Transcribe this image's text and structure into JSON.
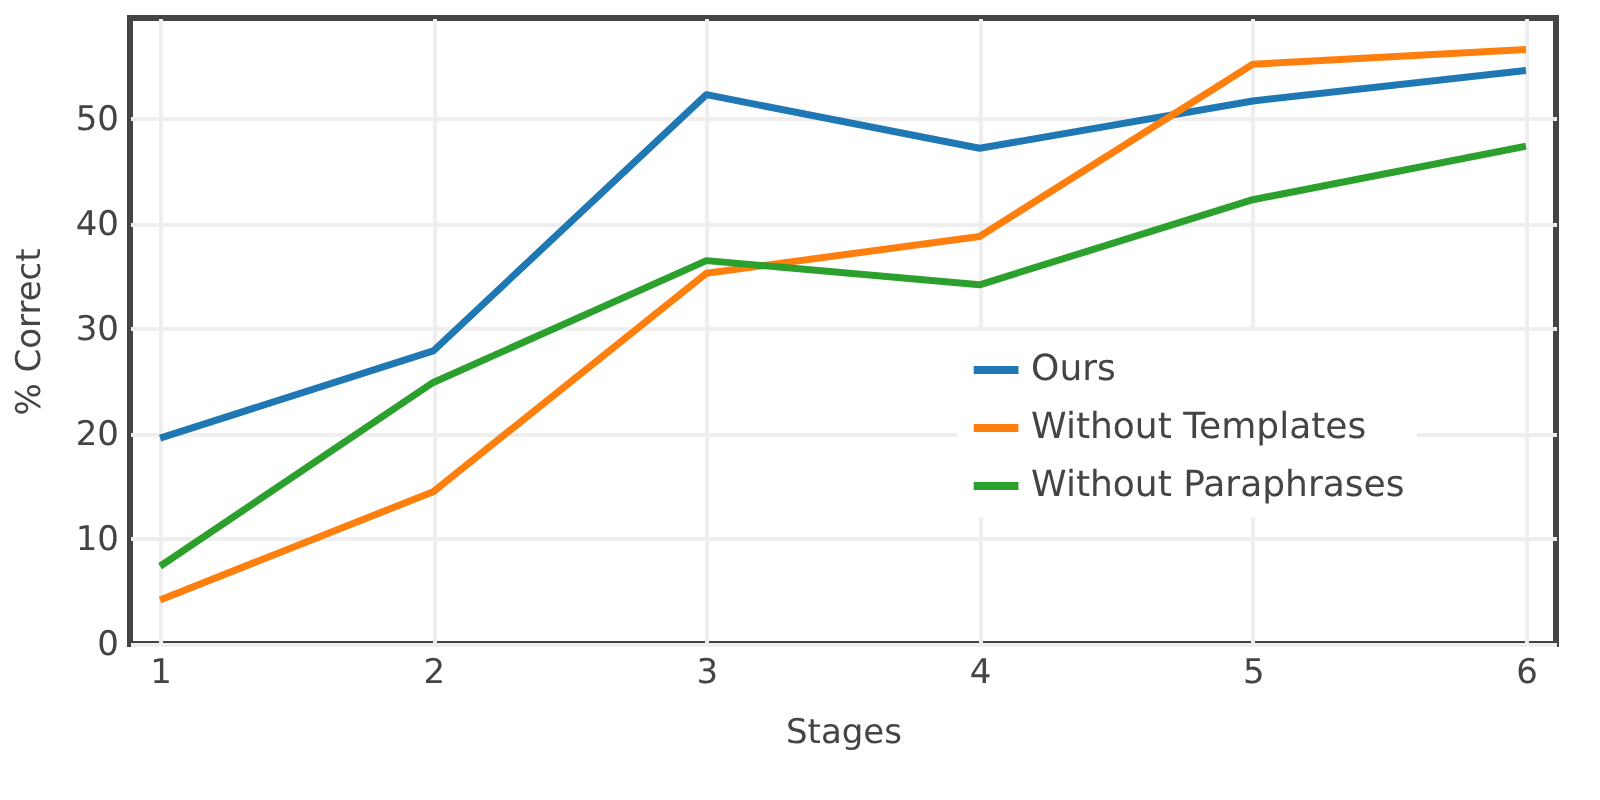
{
  "chart_data": {
    "type": "line",
    "xlabel": "Stages",
    "ylabel": "% Correct",
    "x": [
      1,
      2,
      3,
      4,
      5,
      6
    ],
    "series": [
      {
        "name": "Ours",
        "color": "#1f77b4",
        "values": [
          19.6,
          27.9,
          52.3,
          47.2,
          51.7,
          54.6
        ]
      },
      {
        "name": "Without Templates",
        "color": "#ff7f0e",
        "values": [
          4.2,
          14.5,
          35.3,
          38.8,
          55.2,
          56.6
        ]
      },
      {
        "name": "Without Paraphrases",
        "color": "#2ca02c",
        "values": [
          7.4,
          24.9,
          36.5,
          34.2,
          42.3,
          47.4
        ]
      }
    ],
    "xlim": [
      0.89,
      6.11
    ],
    "xticks": [
      1,
      2,
      3,
      4,
      5,
      6
    ],
    "ylim": [
      0,
      59.6
    ],
    "yticks": [
      0,
      10,
      20,
      30,
      40,
      50
    ],
    "grid": true,
    "legend": "right",
    "marker": "none",
    "line_style": "solid"
  }
}
